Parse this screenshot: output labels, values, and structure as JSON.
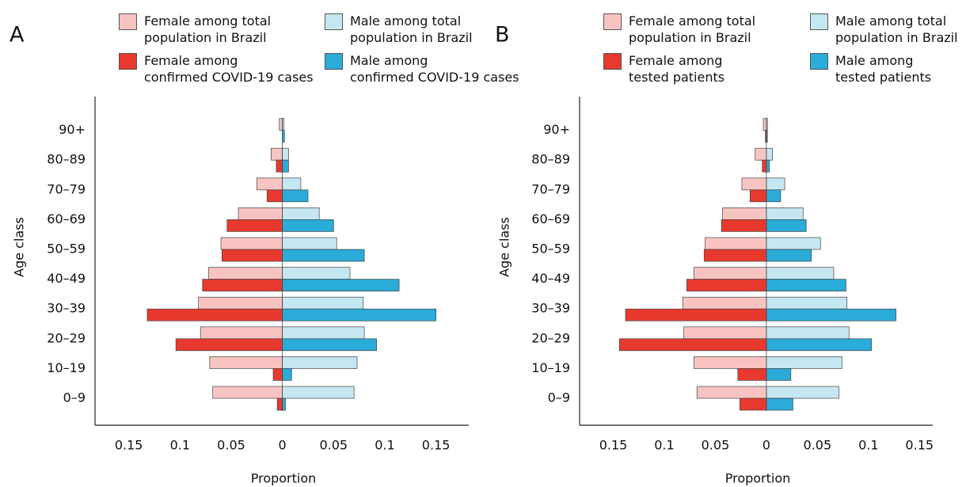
{
  "chart_data": [
    {
      "type": "bar",
      "panel_label": "A",
      "categories": [
        "0–9",
        "10–19",
        "20–29",
        "30–39",
        "40–49",
        "50–59",
        "60–69",
        "70–79",
        "80–89",
        "90+"
      ],
      "series": [
        {
          "name": "Female among total\npopulation in Brazil",
          "color": "#f8c4c2",
          "values": [
            -0.068,
            -0.071,
            -0.08,
            -0.082,
            -0.072,
            -0.06,
            -0.043,
            -0.025,
            -0.011,
            -0.003
          ]
        },
        {
          "name": "Male among total\npopulation in Brazil",
          "color": "#c5e7f1",
          "values": [
            0.07,
            0.073,
            0.08,
            0.079,
            0.066,
            0.053,
            0.036,
            0.018,
            0.006,
            0.0015
          ]
        },
        {
          "name": "Female among\nconfirmed COVID-19 cases",
          "color": "#e8392f",
          "values": [
            -0.005,
            -0.009,
            -0.104,
            -0.132,
            -0.078,
            -0.059,
            -0.054,
            -0.015,
            -0.006,
            0
          ]
        },
        {
          "name": "Male among\nconfirmed COVID-19 cases",
          "color": "#2aabd8",
          "values": [
            0.003,
            0.009,
            0.092,
            0.15,
            0.114,
            0.08,
            0.05,
            0.025,
            0.006,
            0.002
          ]
        }
      ],
      "xlim": [
        -0.183,
        0.182
      ],
      "xticks": [
        {
          "value": -0.15,
          "label": "0.15"
        },
        {
          "value": -0.1,
          "label": "0.1"
        },
        {
          "value": -0.05,
          "label": "0.05"
        },
        0,
        0.05,
        0.1,
        0.15
      ],
      "xlabel": "Proportion",
      "ylabel": "Age class"
    },
    {
      "type": "bar",
      "panel_label": "B",
      "categories": [
        "0–9",
        "10–19",
        "20–29",
        "30–39",
        "40–49",
        "50–59",
        "60–69",
        "70–79",
        "80–89",
        "90+"
      ],
      "series": [
        {
          "name": "Female among total\npopulation in Brazil",
          "color": "#f8c4c2",
          "values": [
            -0.068,
            -0.071,
            -0.081,
            -0.082,
            -0.071,
            -0.06,
            -0.043,
            -0.024,
            -0.011,
            -0.003
          ]
        },
        {
          "name": "Male among total\npopulation in Brazil",
          "color": "#c5e7f1",
          "values": [
            0.071,
            0.074,
            0.081,
            0.079,
            0.066,
            0.053,
            0.036,
            0.018,
            0.006,
            0.001
          ]
        },
        {
          "name": "Female among\ntested patients",
          "color": "#e8392f",
          "values": [
            -0.026,
            -0.028,
            -0.144,
            -0.138,
            -0.078,
            -0.061,
            -0.044,
            -0.016,
            -0.004,
            -0.001
          ]
        },
        {
          "name": "Male among\ntested patients",
          "color": "#2aabd8",
          "values": [
            0.026,
            0.024,
            0.103,
            0.127,
            0.078,
            0.044,
            0.039,
            0.014,
            0.003,
            0.001
          ]
        }
      ],
      "xlim": [
        -0.183,
        0.163
      ],
      "xticks": [
        {
          "value": -0.15,
          "label": "0.15"
        },
        {
          "value": -0.1,
          "label": "0.1"
        },
        {
          "value": -0.05,
          "label": "0.05"
        },
        0,
        0.05,
        0.1,
        0.15
      ],
      "xlabel": "Proportion",
      "ylabel": "Age class"
    }
  ]
}
